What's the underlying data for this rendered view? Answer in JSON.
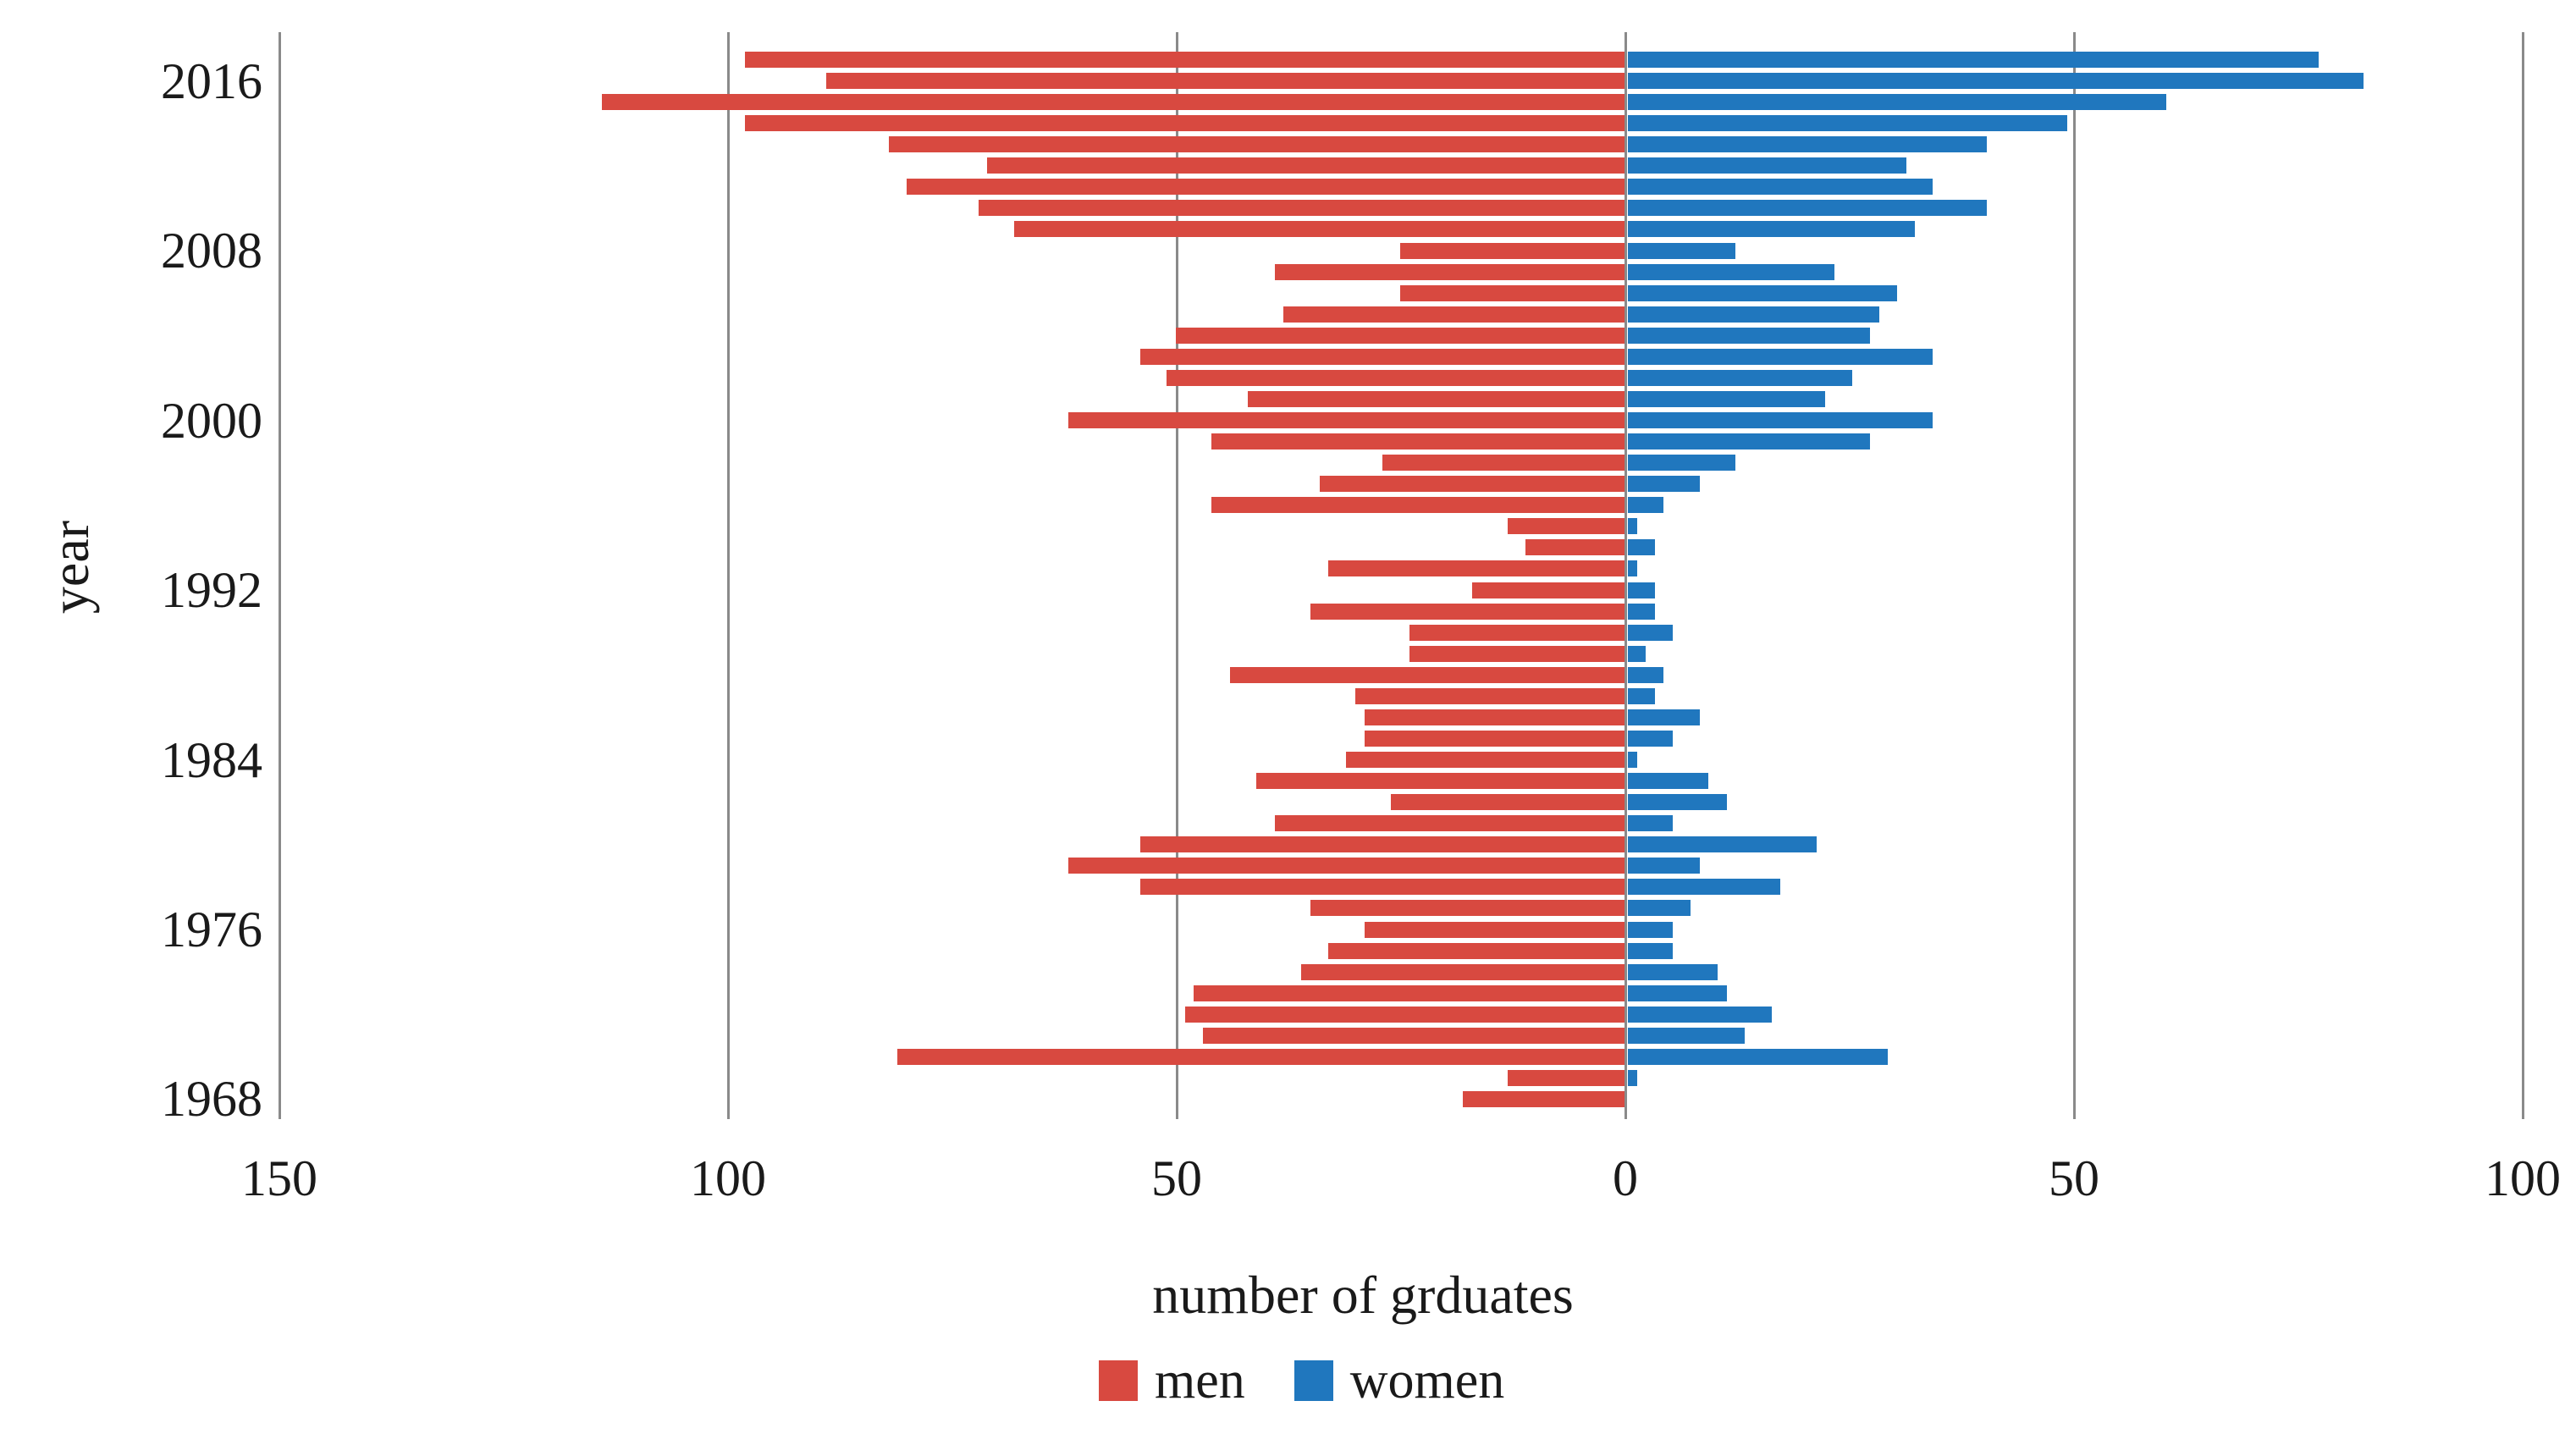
{
  "chart_data": {
    "type": "bar",
    "variant": "diverging-horizontal-pyramid",
    "title": "",
    "xlabel": "number of grduates",
    "ylabel": "year",
    "legend_position": "bottom",
    "grid": "vertical-gridlines-on",
    "x_axis": {
      "tick_labels": [
        "150",
        "100",
        "50",
        "0",
        "50",
        "100"
      ],
      "tick_values": [
        -150,
        -100,
        -50,
        0,
        50,
        100
      ],
      "xlim": [
        -152,
        106
      ]
    },
    "y_axis": {
      "tick_years": [
        2016,
        2008,
        2000,
        1992,
        1984,
        1976,
        1968
      ],
      "range": [
        1968,
        2017
      ]
    },
    "series": [
      {
        "name": "men",
        "color": "#D84940",
        "side": "left"
      },
      {
        "name": "women",
        "color": "#2077BE",
        "side": "right"
      }
    ],
    "rows": [
      {
        "year": 2017,
        "men": 98,
        "women": 77
      },
      {
        "year": 2016,
        "men": 89,
        "women": 82
      },
      {
        "year": 2015,
        "men": 114,
        "women": 60
      },
      {
        "year": 2014,
        "men": 98,
        "women": 49
      },
      {
        "year": 2013,
        "men": 82,
        "women": 40
      },
      {
        "year": 2012,
        "men": 71,
        "women": 31
      },
      {
        "year": 2011,
        "men": 80,
        "women": 34
      },
      {
        "year": 2010,
        "men": 72,
        "women": 40
      },
      {
        "year": 2009,
        "men": 68,
        "women": 32
      },
      {
        "year": 2008,
        "men": 25,
        "women": 12
      },
      {
        "year": 2007,
        "men": 39,
        "women": 23
      },
      {
        "year": 2006,
        "men": 25,
        "women": 30
      },
      {
        "year": 2005,
        "men": 38,
        "women": 28
      },
      {
        "year": 2004,
        "men": 50,
        "women": 27
      },
      {
        "year": 2003,
        "men": 54,
        "women": 34
      },
      {
        "year": 2002,
        "men": 51,
        "women": 25
      },
      {
        "year": 2001,
        "men": 42,
        "women": 22
      },
      {
        "year": 2000,
        "men": 62,
        "women": 34
      },
      {
        "year": 1999,
        "men": 46,
        "women": 27
      },
      {
        "year": 1998,
        "men": 27,
        "women": 12
      },
      {
        "year": 1997,
        "men": 34,
        "women": 8
      },
      {
        "year": 1996,
        "men": 46,
        "women": 4
      },
      {
        "year": 1995,
        "men": 13,
        "women": 1
      },
      {
        "year": 1994,
        "men": 11,
        "women": 3
      },
      {
        "year": 1993,
        "men": 33,
        "women": 1
      },
      {
        "year": 1992,
        "men": 17,
        "women": 3
      },
      {
        "year": 1991,
        "men": 35,
        "women": 3
      },
      {
        "year": 1990,
        "men": 24,
        "women": 5
      },
      {
        "year": 1989,
        "men": 24,
        "women": 2
      },
      {
        "year": 1988,
        "men": 44,
        "women": 4
      },
      {
        "year": 1987,
        "men": 30,
        "women": 3
      },
      {
        "year": 1986,
        "men": 29,
        "women": 8
      },
      {
        "year": 1985,
        "men": 29,
        "women": 5
      },
      {
        "year": 1984,
        "men": 31,
        "women": 1
      },
      {
        "year": 1983,
        "men": 41,
        "women": 9
      },
      {
        "year": 1982,
        "men": 26,
        "women": 11
      },
      {
        "year": 1981,
        "men": 39,
        "women": 5
      },
      {
        "year": 1980,
        "men": 54,
        "women": 21
      },
      {
        "year": 1979,
        "men": 62,
        "women": 8
      },
      {
        "year": 1978,
        "men": 54,
        "women": 17
      },
      {
        "year": 1977,
        "men": 35,
        "women": 7
      },
      {
        "year": 1976,
        "men": 29,
        "women": 5
      },
      {
        "year": 1975,
        "men": 33,
        "women": 5
      },
      {
        "year": 1974,
        "men": 36,
        "women": 10
      },
      {
        "year": 1973,
        "men": 48,
        "women": 11
      },
      {
        "year": 1972,
        "men": 49,
        "women": 16
      },
      {
        "year": 1971,
        "men": 47,
        "women": 13
      },
      {
        "year": 1970,
        "men": 81,
        "women": 29
      },
      {
        "year": 1969,
        "men": 13,
        "women": 1
      },
      {
        "year": 1968,
        "men": 18,
        "women": 0
      }
    ]
  },
  "colors": {
    "men": "#D84940",
    "women": "#2077BE",
    "gridline": "#8a8a8a",
    "text": "#1a1a1a",
    "background": "#ffffff"
  }
}
